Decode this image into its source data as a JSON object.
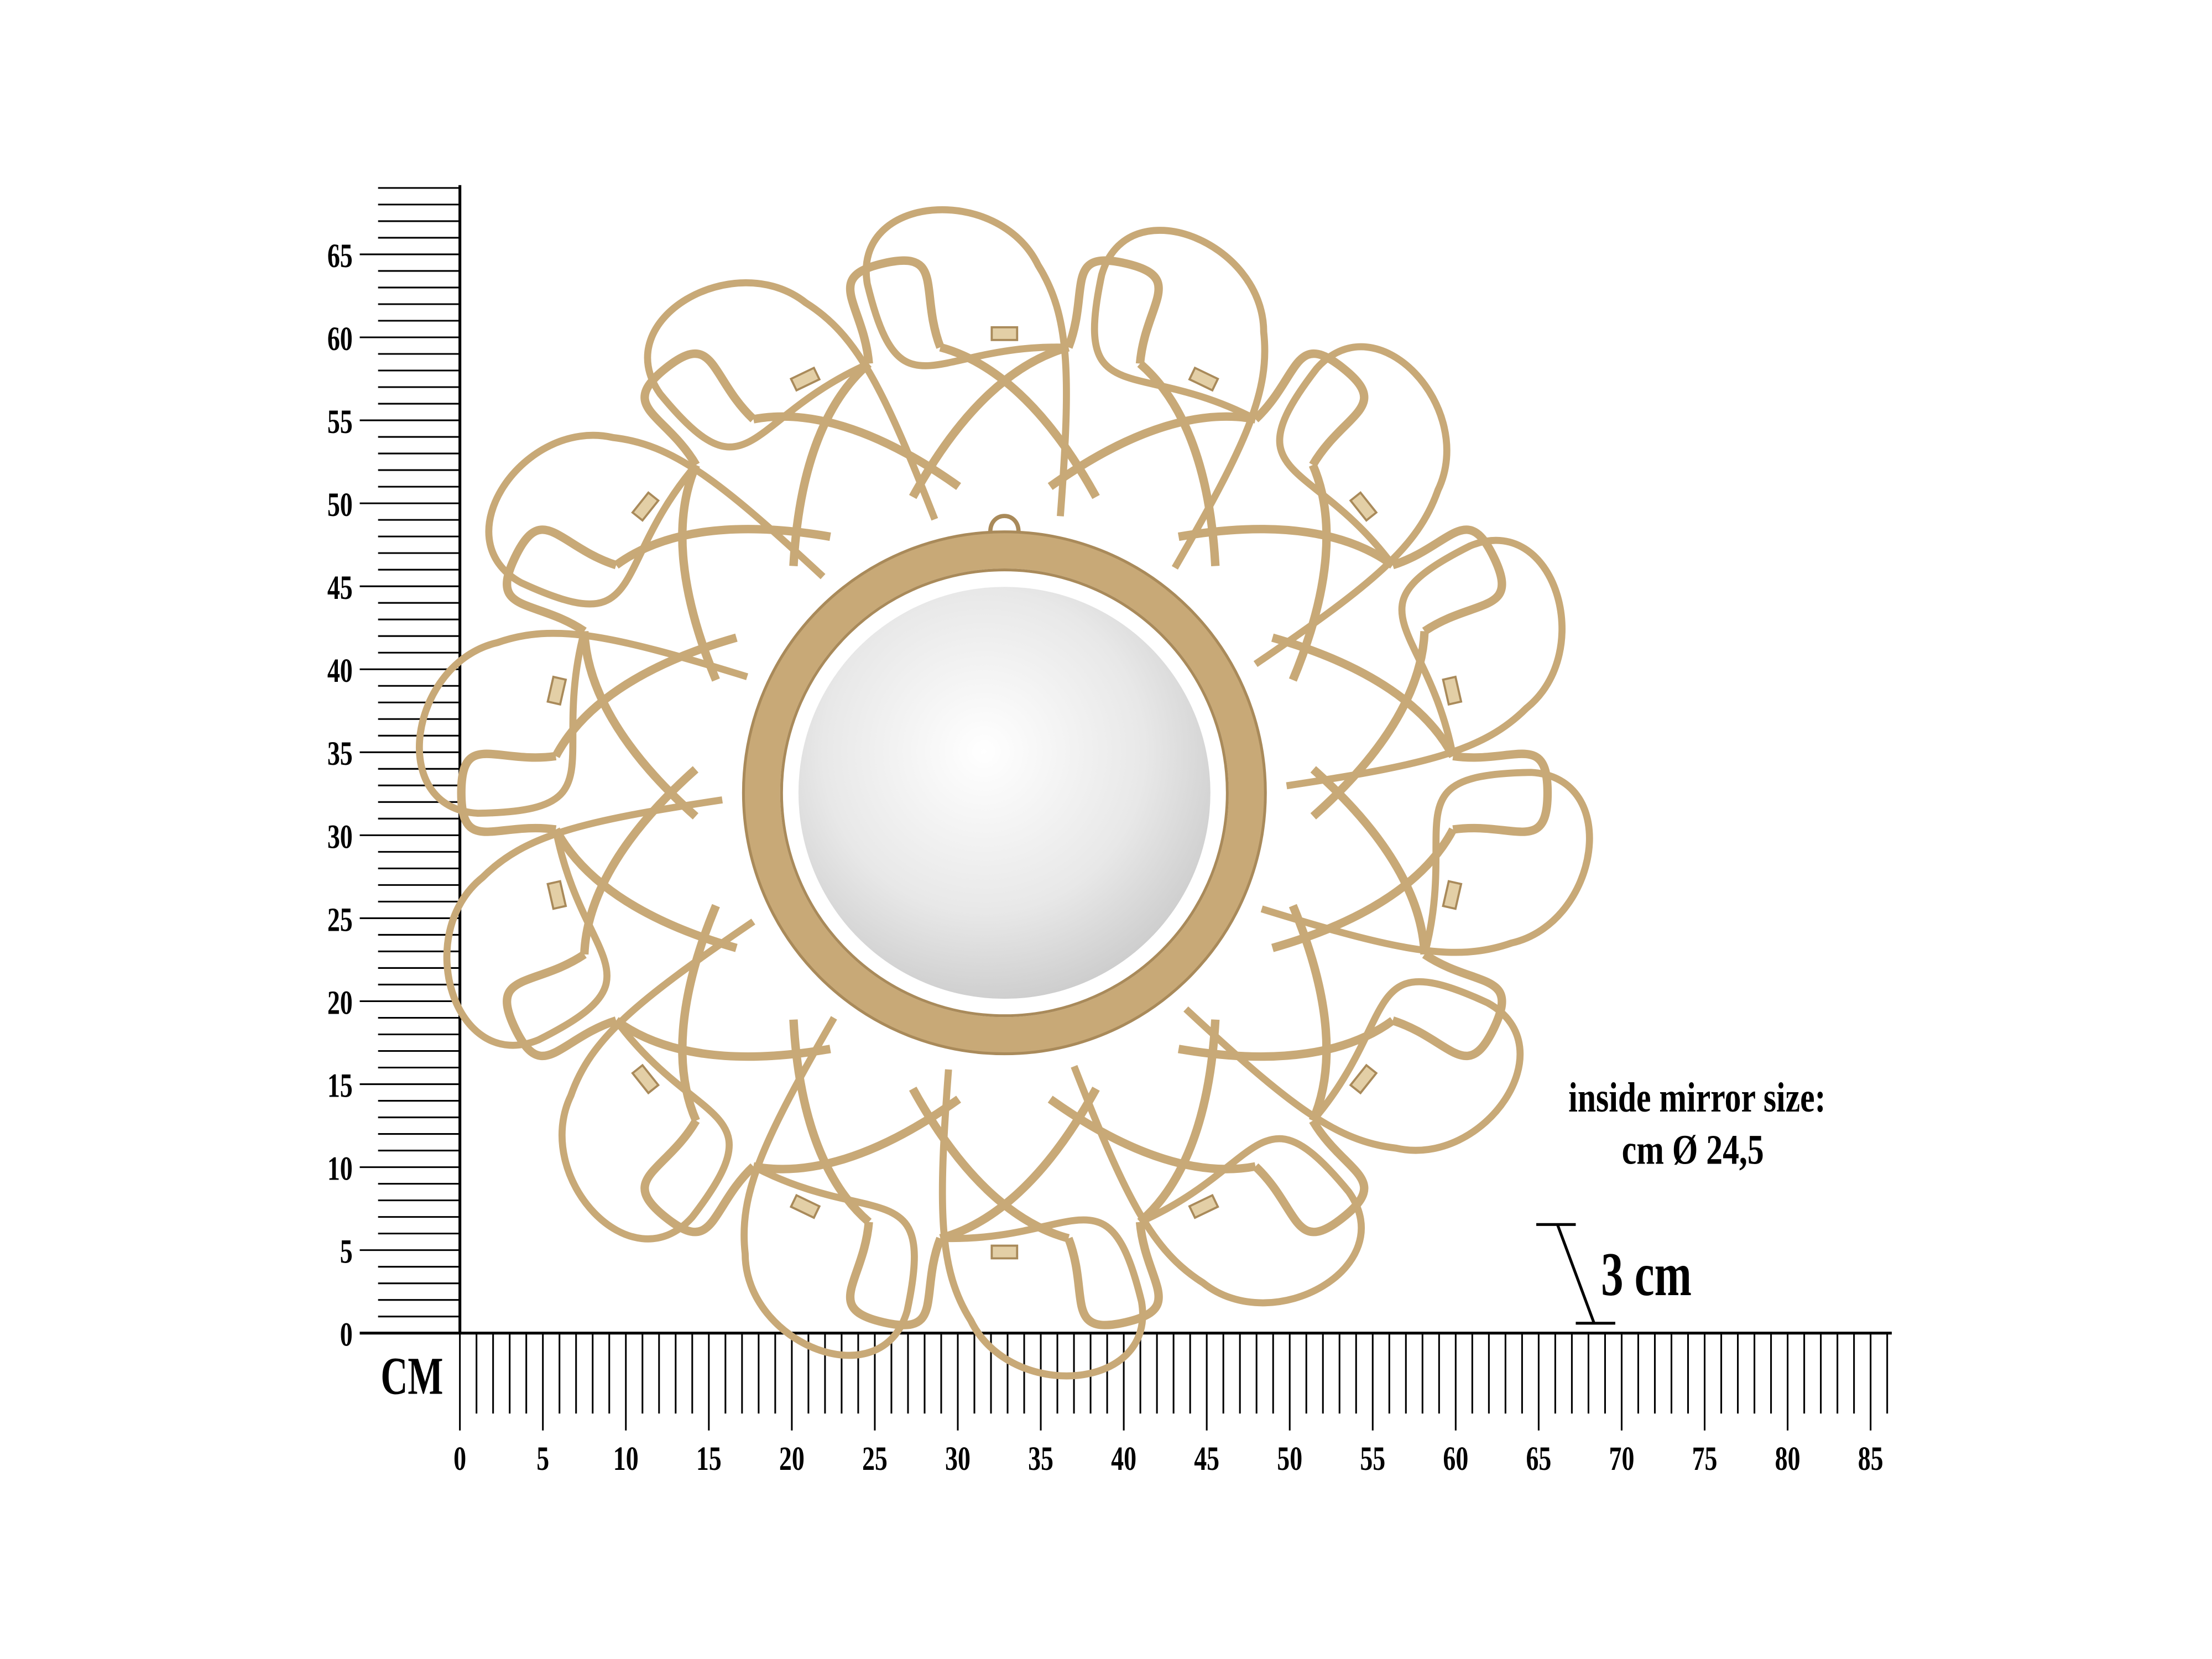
{
  "colors": {
    "rattan": "#c8a977",
    "rattan_dark": "#a98a5a",
    "mirror": "#e6e6e6",
    "ink": "#000000"
  },
  "rulers": {
    "unit_label": "CM",
    "vertical_labels": [
      "0",
      "5",
      "10",
      "15",
      "20",
      "25",
      "30",
      "35",
      "40",
      "45",
      "50",
      "55",
      "60",
      "65"
    ],
    "horizontal_labels": [
      "0",
      "5",
      "10",
      "15",
      "20",
      "25",
      "30",
      "35",
      "40",
      "45",
      "50",
      "55",
      "60",
      "65",
      "70",
      "75",
      "80",
      "85"
    ],
    "vertical_max_cm": 69,
    "horizontal_max_cm": 86
  },
  "annotation": {
    "line1": "inside mirror size:",
    "line2": "cm Ø 24,5",
    "depth": "3 cm"
  },
  "product": {
    "petal_count": 14,
    "icon": "rattan-flower-mirror"
  }
}
